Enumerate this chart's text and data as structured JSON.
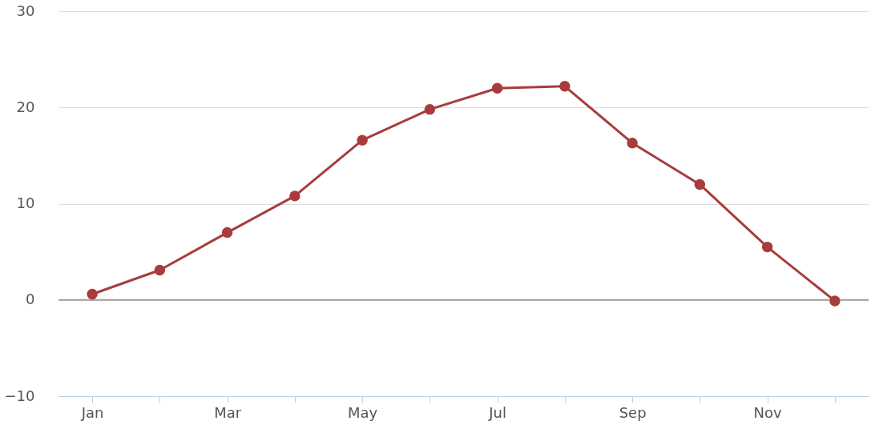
{
  "chart_data": {
    "type": "line",
    "categories": [
      "Jan",
      null,
      "Mar",
      null,
      "May",
      null,
      "Jul",
      null,
      "Sep",
      null,
      "Nov",
      null
    ],
    "series": [
      {
        "color": "#a83c3c",
        "values": [
          0.6,
          3.1,
          7.0,
          10.8,
          16.6,
          19.8,
          22.0,
          22.2,
          16.3,
          12.0,
          5.5,
          -0.1
        ]
      }
    ],
    "ylim": [
      -10,
      30
    ],
    "yticks": [
      -10,
      0,
      10,
      20,
      30
    ],
    "grid": "y",
    "marker": "circle",
    "line_style": "solid",
    "ref_lines": [
      {
        "axis": "y",
        "value": 0,
        "color": "#a0a0a0"
      }
    ]
  }
}
